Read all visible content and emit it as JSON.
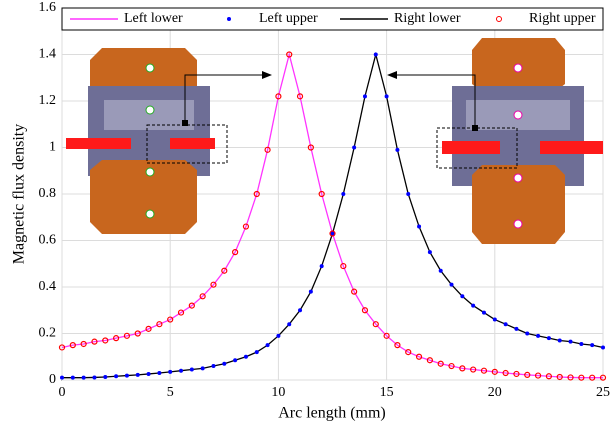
{
  "chart_data": {
    "type": "line",
    "x_label": "Arc length (mm)",
    "y_label": "Magnetic flux density",
    "xlim": [
      0,
      25
    ],
    "ylim": [
      0,
      1.6
    ],
    "xticks": [
      0,
      5,
      10,
      15,
      20,
      25
    ],
    "yticks": [
      0,
      0.2,
      0.4,
      0.6,
      0.8,
      1,
      1.2,
      1.4,
      1.6
    ],
    "grid": true,
    "x": [
      0,
      0.5,
      1,
      1.5,
      2,
      2.5,
      3,
      3.5,
      4,
      4.5,
      5,
      5.5,
      6,
      6.5,
      7,
      7.5,
      8,
      8.5,
      9,
      9.5,
      10,
      10.5,
      11,
      11.5,
      12,
      12.5,
      13,
      13.5,
      14,
      14.5,
      15,
      15.5,
      16,
      16.5,
      17,
      17.5,
      18,
      18.5,
      19,
      19.5,
      20,
      20.5,
      21,
      21.5,
      22,
      22.5,
      23,
      23.5,
      24,
      24.5,
      25
    ],
    "series": [
      {
        "name": "Left lower",
        "color": "#ff33ff",
        "marker": "none",
        "values": [
          0.14,
          0.15,
          0.155,
          0.165,
          0.17,
          0.18,
          0.19,
          0.2,
          0.22,
          0.24,
          0.26,
          0.29,
          0.32,
          0.36,
          0.41,
          0.47,
          0.55,
          0.66,
          0.8,
          0.99,
          1.22,
          1.4,
          1.22,
          1.0,
          0.8,
          0.63,
          0.49,
          0.38,
          0.3,
          0.24,
          0.19,
          0.15,
          0.12,
          0.1,
          0.085,
          0.07,
          0.06,
          0.05,
          0.045,
          0.04,
          0.035,
          0.03,
          0.026,
          0.022,
          0.019,
          0.016,
          0.013,
          0.011,
          0.01,
          0.01,
          0.01
        ]
      },
      {
        "name": "Left upper",
        "color": "#0000ff",
        "marker": "dot",
        "values": [
          0.01,
          0.01,
          0.01,
          0.011,
          0.013,
          0.016,
          0.019,
          0.022,
          0.026,
          0.03,
          0.035,
          0.04,
          0.045,
          0.05,
          0.06,
          0.07,
          0.085,
          0.1,
          0.12,
          0.15,
          0.19,
          0.24,
          0.3,
          0.38,
          0.49,
          0.63,
          0.8,
          1.0,
          1.22,
          1.4,
          1.22,
          0.99,
          0.8,
          0.66,
          0.55,
          0.47,
          0.41,
          0.36,
          0.32,
          0.29,
          0.26,
          0.24,
          0.22,
          0.2,
          0.19,
          0.18,
          0.17,
          0.165,
          0.155,
          0.15,
          0.14
        ]
      },
      {
        "name": "Right lower",
        "color": "#000000",
        "marker": "none",
        "values": [
          0.01,
          0.01,
          0.01,
          0.011,
          0.013,
          0.016,
          0.019,
          0.022,
          0.026,
          0.03,
          0.035,
          0.04,
          0.045,
          0.05,
          0.06,
          0.07,
          0.085,
          0.1,
          0.12,
          0.15,
          0.19,
          0.24,
          0.3,
          0.38,
          0.49,
          0.63,
          0.8,
          1.0,
          1.22,
          1.4,
          1.22,
          0.99,
          0.8,
          0.66,
          0.55,
          0.47,
          0.41,
          0.36,
          0.32,
          0.29,
          0.26,
          0.24,
          0.22,
          0.2,
          0.19,
          0.18,
          0.17,
          0.165,
          0.155,
          0.15,
          0.14
        ]
      },
      {
        "name": "Right upper",
        "color": "#ff0000",
        "marker": "circle",
        "values": [
          0.14,
          0.15,
          0.155,
          0.165,
          0.17,
          0.18,
          0.19,
          0.2,
          0.22,
          0.24,
          0.26,
          0.29,
          0.32,
          0.36,
          0.41,
          0.47,
          0.55,
          0.66,
          0.8,
          0.99,
          1.22,
          1.4,
          1.22,
          1.0,
          0.8,
          0.63,
          0.49,
          0.38,
          0.3,
          0.24,
          0.19,
          0.15,
          0.12,
          0.1,
          0.085,
          0.07,
          0.06,
          0.05,
          0.045,
          0.04,
          0.035,
          0.03,
          0.026,
          0.022,
          0.019,
          0.016,
          0.013,
          0.011,
          0.01,
          0.01,
          0.01
        ]
      }
    ]
  }
}
